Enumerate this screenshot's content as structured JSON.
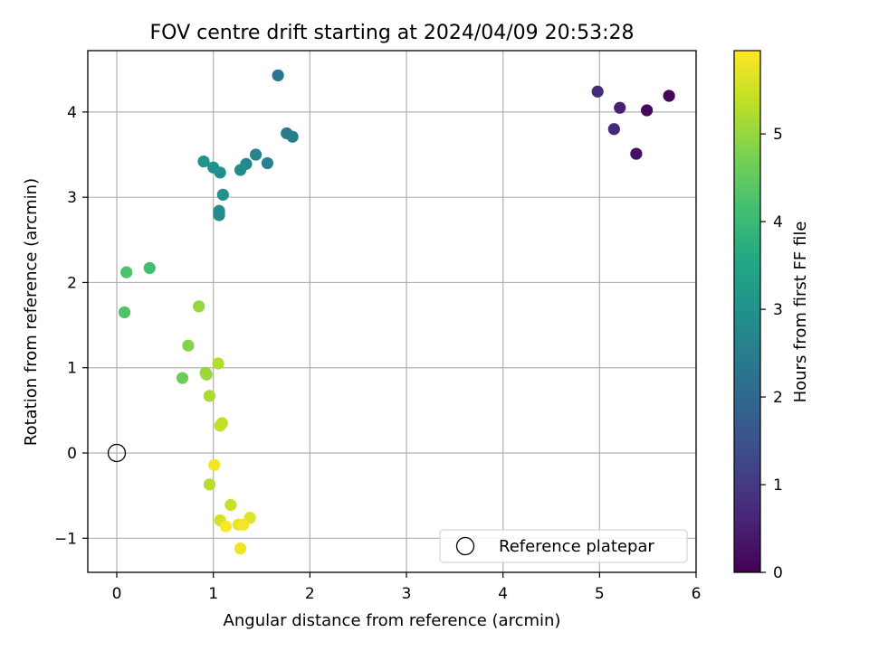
{
  "chart_data": {
    "type": "scatter",
    "title": "FOV centre drift starting at 2024/04/09 20:53:28",
    "xlabel": "Angular distance from reference (arcmin)",
    "ylabel": "Rotation from reference (arcmin)",
    "xlim": [
      -0.3,
      6.0
    ],
    "ylim": [
      -1.4,
      4.72
    ],
    "xticks": [
      0,
      1,
      2,
      3,
      4,
      5,
      6
    ],
    "xtick_labels": [
      "0",
      "1",
      "2",
      "3",
      "4",
      "5",
      "6"
    ],
    "yticks": [
      -1,
      0,
      1,
      2,
      3,
      4
    ],
    "ytick_labels": [
      "−1",
      "0",
      "1",
      "2",
      "3",
      "4"
    ],
    "grid": true,
    "legend": {
      "placement": "lower-right",
      "entries": [
        "Reference platepar"
      ]
    },
    "reference_point": {
      "x": 0,
      "y": 0,
      "label": "Reference platepar"
    },
    "colorbar": {
      "label": "Hours from first FF file",
      "colormap": "viridis",
      "range": [
        0,
        5.95
      ],
      "ticks": [
        0,
        1,
        2,
        3,
        4,
        5
      ],
      "tick_labels": [
        "0",
        "1",
        "2",
        "3",
        "4",
        "5"
      ]
    },
    "points": [
      {
        "x": 5.72,
        "y": 4.19,
        "hours": 0.05
      },
      {
        "x": 5.49,
        "y": 4.02,
        "hours": 0.15
      },
      {
        "x": 5.38,
        "y": 3.51,
        "hours": 0.25
      },
      {
        "x": 5.21,
        "y": 4.05,
        "hours": 0.55
      },
      {
        "x": 5.15,
        "y": 3.8,
        "hours": 0.65
      },
      {
        "x": 4.98,
        "y": 4.24,
        "hours": 0.75
      },
      {
        "x": 1.67,
        "y": 4.43,
        "hours": 2.35
      },
      {
        "x": 1.76,
        "y": 3.75,
        "hours": 2.45
      },
      {
        "x": 1.82,
        "y": 3.71,
        "hours": 2.55
      },
      {
        "x": 1.56,
        "y": 3.4,
        "hours": 2.65
      },
      {
        "x": 1.44,
        "y": 3.5,
        "hours": 2.72
      },
      {
        "x": 1.34,
        "y": 3.39,
        "hours": 2.78
      },
      {
        "x": 1.28,
        "y": 3.32,
        "hours": 2.85
      },
      {
        "x": 1.07,
        "y": 3.29,
        "hours": 2.92
      },
      {
        "x": 1.0,
        "y": 3.35,
        "hours": 2.98
      },
      {
        "x": 0.9,
        "y": 3.42,
        "hours": 3.03
      },
      {
        "x": 1.1,
        "y": 3.03,
        "hours": 3.0
      },
      {
        "x": 1.06,
        "y": 2.84,
        "hours": 2.9
      },
      {
        "x": 1.06,
        "y": 2.79,
        "hours": 2.82
      },
      {
        "x": 0.34,
        "y": 2.17,
        "hours": 4.15
      },
      {
        "x": 0.1,
        "y": 2.12,
        "hours": 4.25
      },
      {
        "x": 0.08,
        "y": 1.65,
        "hours": 4.3
      },
      {
        "x": 0.85,
        "y": 1.72,
        "hours": 5.0
      },
      {
        "x": 0.74,
        "y": 1.26,
        "hours": 4.85
      },
      {
        "x": 1.05,
        "y": 1.05,
        "hours": 5.25
      },
      {
        "x": 0.92,
        "y": 0.94,
        "hours": 4.95
      },
      {
        "x": 0.93,
        "y": 0.92,
        "hours": 5.05
      },
      {
        "x": 0.68,
        "y": 0.88,
        "hours": 4.6
      },
      {
        "x": 0.96,
        "y": 0.67,
        "hours": 5.2
      },
      {
        "x": 1.09,
        "y": 0.35,
        "hours": 5.35
      },
      {
        "x": 1.07,
        "y": 0.32,
        "hours": 5.4
      },
      {
        "x": 1.01,
        "y": -0.14,
        "hours": 5.88
      },
      {
        "x": 0.96,
        "y": -0.37,
        "hours": 5.3
      },
      {
        "x": 1.18,
        "y": -0.61,
        "hours": 5.45
      },
      {
        "x": 1.07,
        "y": -0.79,
        "hours": 5.55
      },
      {
        "x": 1.38,
        "y": -0.76,
        "hours": 5.65
      },
      {
        "x": 1.13,
        "y": -0.86,
        "hours": 5.92
      },
      {
        "x": 1.26,
        "y": -0.84,
        "hours": 5.75
      },
      {
        "x": 1.31,
        "y": -0.84,
        "hours": 5.85
      },
      {
        "x": 1.28,
        "y": -1.12,
        "hours": 5.8
      }
    ]
  }
}
